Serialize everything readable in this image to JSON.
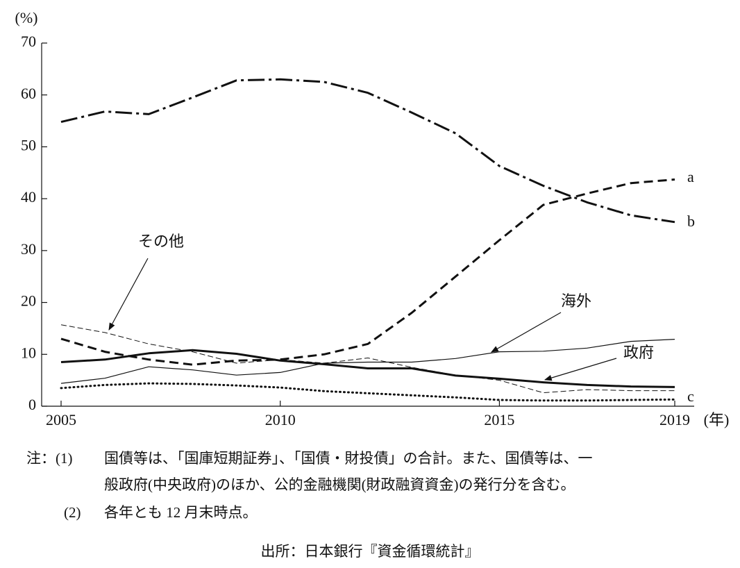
{
  "chart_data": {
    "type": "line",
    "y_unit": "(%)",
    "x_unit": "(年)",
    "x": [
      2005,
      2006,
      2007,
      2008,
      2009,
      2010,
      2011,
      2012,
      2013,
      2014,
      2015,
      2016,
      2017,
      2018,
      2019
    ],
    "xlim": [
      2005,
      2019
    ],
    "xticks": [
      2005,
      2010,
      2015,
      2019
    ],
    "ylim": [
      0,
      70
    ],
    "yticks": [
      0,
      10,
      20,
      30,
      40,
      50,
      60,
      70
    ],
    "grid": false,
    "series": [
      {
        "name": "a",
        "color": "#111111",
        "style": "dashed",
        "width": 3,
        "values": [
          13,
          10.5,
          9,
          8,
          8.8,
          9,
          10,
          12,
          18,
          25,
          32,
          38.8,
          41,
          43,
          43.7
        ]
      },
      {
        "name": "b",
        "color": "#111111",
        "style": "dashdot",
        "width": 3,
        "values": [
          54.8,
          56.8,
          56.3,
          59.5,
          62.8,
          63,
          62.5,
          60.4,
          56.6,
          52.6,
          46.3,
          42.5,
          39.3,
          36.8,
          35.5
        ]
      },
      {
        "name": "c",
        "color": "#111111",
        "style": "dotted",
        "width": 3,
        "values": [
          3.5,
          4.1,
          4.4,
          4.3,
          4,
          3.6,
          2.9,
          2.5,
          2.1,
          1.7,
          1.2,
          1.1,
          1.1,
          1.2,
          1.3
        ]
      },
      {
        "name": "その他",
        "color": "#111111",
        "style": "thin-dashed",
        "width": 1,
        "values": [
          15.7,
          14.2,
          12,
          10.5,
          8.3,
          9,
          8.3,
          9.3,
          7.5,
          6,
          5,
          2.6,
          3.2,
          3,
          3
        ]
      },
      {
        "name": "海外",
        "color": "#111111",
        "style": "solid",
        "width": 1.2,
        "values": [
          4.4,
          5.4,
          7.6,
          7,
          6,
          6.5,
          8.3,
          8.5,
          8.5,
          9.2,
          10.5,
          10.6,
          11.2,
          12.5,
          12.9
        ]
      },
      {
        "name": "政府",
        "color": "#111111",
        "style": "solid",
        "width": 3,
        "values": [
          8.5,
          9,
          10.2,
          10.8,
          10.1,
          8.8,
          8.1,
          7.3,
          7.3,
          5.9,
          5.3,
          4.6,
          4.1,
          3.8,
          3.7
        ]
      }
    ],
    "notes": [
      {
        "label": "注：(1)",
        "lines": [
          "国債等は、「国庫短期証券」、「国債・財投債」の合計。また、国債等は、一",
          "般政府(中央政府)のほか、公的金融機関(財政融資資金)の発行分を含む。"
        ]
      },
      {
        "label": "(2)",
        "lines": [
          "各年とも 12 月末時点。"
        ]
      }
    ],
    "source": "出所：日本銀行『資金循環統計』"
  }
}
